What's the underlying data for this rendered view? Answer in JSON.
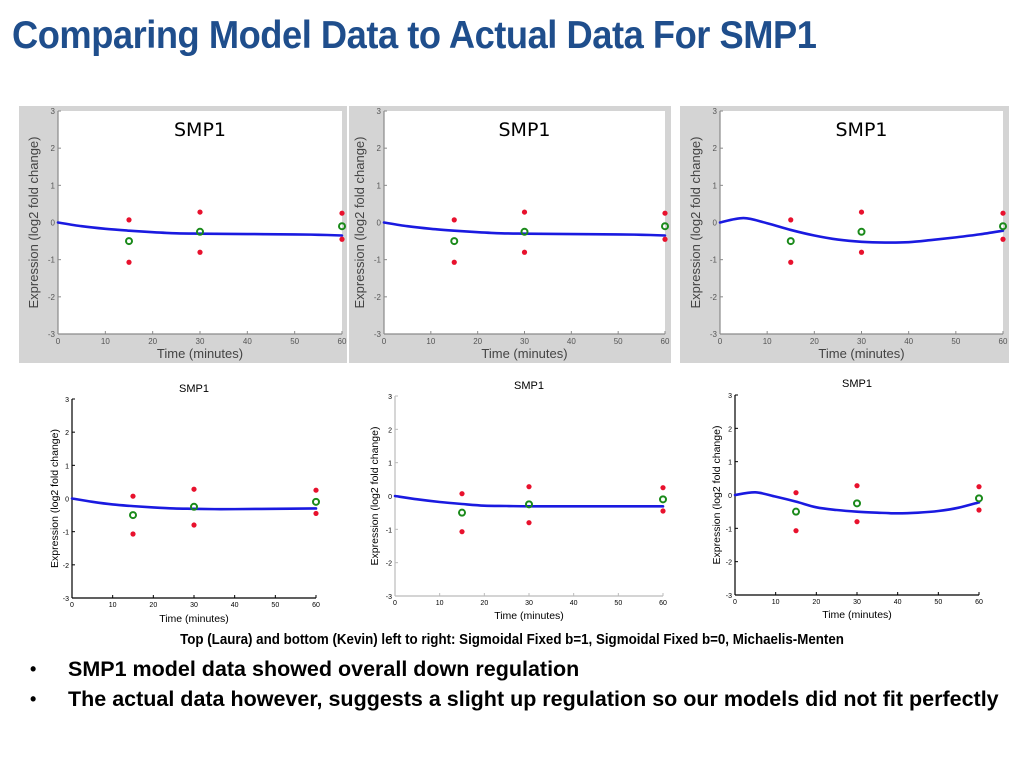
{
  "slide": {
    "title": "Comparing Model Data to Actual Data For SMP1",
    "caption": "Top (Laura) and bottom (Kevin) left to right: Sigmoidal Fixed b=1, Sigmoidal Fixed b=0, Michaelis-Menten",
    "bullets": [
      "SMP1 model data showed overall down regulation",
      "The actual data however, suggests a slight up regulation so our models did not fit perfectly"
    ],
    "bullet_glyph": "•"
  },
  "colors": {
    "title": "#1f4e8c",
    "model_line": "#1a1ae0",
    "replicate": "#e8112d",
    "mean": "#1a8a1a",
    "panel_bg": "#d4d4d4"
  },
  "chart_data": [
    {
      "id": "top-sigmoidal-b1",
      "type": "line",
      "style": "screenshot",
      "title": "SMP1",
      "xlabel": "Time (minutes)",
      "ylabel": "Expression (log2 fold change)",
      "xlim": [
        0,
        60
      ],
      "ylim": [
        -3,
        3
      ],
      "xticks": [
        0,
        10,
        20,
        30,
        40,
        50,
        60
      ],
      "yticks": [
        -3,
        -2,
        -1,
        0,
        1,
        2,
        3
      ],
      "model": {
        "x": [
          0,
          5,
          10,
          15,
          20,
          25,
          30,
          40,
          50,
          55,
          60
        ],
        "y": [
          0,
          -0.1,
          -0.17,
          -0.22,
          -0.26,
          -0.29,
          -0.3,
          -0.31,
          -0.32,
          -0.33,
          -0.35
        ]
      },
      "replicates": {
        "x": [
          15,
          15,
          30,
          30,
          60,
          60
        ],
        "y": [
          0.07,
          -1.07,
          0.28,
          -0.8,
          0.25,
          -0.45
        ]
      },
      "means": {
        "x": [
          15,
          30,
          60
        ],
        "y": [
          -0.5,
          -0.25,
          -0.1
        ]
      }
    },
    {
      "id": "top-sigmoidal-b0",
      "type": "line",
      "style": "screenshot",
      "title": "SMP1",
      "xlabel": "Time (minutes)",
      "ylabel": "Expression (log2 fold change)",
      "xlim": [
        0,
        60
      ],
      "ylim": [
        -3,
        3
      ],
      "xticks": [
        0,
        10,
        20,
        30,
        40,
        50,
        60
      ],
      "yticks": [
        -3,
        -2,
        -1,
        0,
        1,
        2,
        3
      ],
      "model": {
        "x": [
          0,
          5,
          10,
          15,
          20,
          25,
          30,
          40,
          50,
          55,
          60
        ],
        "y": [
          0,
          -0.1,
          -0.17,
          -0.22,
          -0.26,
          -0.29,
          -0.3,
          -0.31,
          -0.32,
          -0.33,
          -0.35
        ]
      },
      "replicates": {
        "x": [
          15,
          15,
          30,
          30,
          60,
          60
        ],
        "y": [
          0.07,
          -1.07,
          0.28,
          -0.8,
          0.25,
          -0.45
        ]
      },
      "means": {
        "x": [
          15,
          30,
          60
        ],
        "y": [
          -0.5,
          -0.25,
          -0.1
        ]
      }
    },
    {
      "id": "top-michaelis-menten",
      "type": "line",
      "style": "screenshot",
      "title": "SMP1",
      "xlabel": "Time (minutes)",
      "ylabel": "Expression (log2 fold change)",
      "xlim": [
        0,
        60
      ],
      "ylim": [
        -3,
        3
      ],
      "xticks": [
        0,
        10,
        20,
        30,
        40,
        50,
        60
      ],
      "yticks": [
        -3,
        -2,
        -1,
        0,
        1,
        2,
        3
      ],
      "model": {
        "x": [
          0,
          5,
          10,
          15,
          20,
          25,
          30,
          35,
          40,
          45,
          50,
          55,
          60
        ],
        "y": [
          0,
          0.12,
          -0.02,
          -0.2,
          -0.35,
          -0.46,
          -0.52,
          -0.54,
          -0.53,
          -0.47,
          -0.4,
          -0.32,
          -0.22
        ]
      },
      "replicates": {
        "x": [
          15,
          15,
          30,
          30,
          60,
          60
        ],
        "y": [
          0.07,
          -1.07,
          0.28,
          -0.8,
          0.25,
          -0.45
        ]
      },
      "means": {
        "x": [
          15,
          30,
          60
        ],
        "y": [
          -0.5,
          -0.25,
          -0.1
        ]
      }
    },
    {
      "id": "bottom-sigmoidal-b1",
      "type": "line",
      "style": "matlab-box",
      "title": "SMP1",
      "xlabel": "Time (minutes)",
      "ylabel": "Expression (log2 fold change)",
      "xlim": [
        0,
        60
      ],
      "ylim": [
        -3,
        3
      ],
      "xticks": [
        0,
        10,
        20,
        30,
        40,
        50,
        60
      ],
      "yticks": [
        -3,
        -2,
        -1,
        0,
        1,
        2,
        3
      ],
      "model": {
        "x": [
          0,
          5,
          10,
          15,
          20,
          25,
          30,
          35,
          40,
          50,
          60
        ],
        "y": [
          0,
          -0.1,
          -0.18,
          -0.23,
          -0.27,
          -0.3,
          -0.31,
          -0.32,
          -0.32,
          -0.31,
          -0.3
        ]
      },
      "replicates": {
        "x": [
          15,
          15,
          30,
          30,
          60,
          60
        ],
        "y": [
          0.07,
          -1.07,
          0.28,
          -0.8,
          0.25,
          -0.45
        ]
      },
      "means": {
        "x": [
          15,
          30,
          60
        ],
        "y": [
          -0.5,
          -0.25,
          -0.1
        ]
      }
    },
    {
      "id": "bottom-sigmoidal-b0",
      "type": "line",
      "style": "light-axes",
      "title": "SMP1",
      "xlabel": "Time (minutes)",
      "ylabel": "Expression (log2 fold change)",
      "xlim": [
        0,
        60
      ],
      "ylim": [
        -3,
        3
      ],
      "xticks": [
        0,
        10,
        20,
        30,
        40,
        50,
        60
      ],
      "yticks": [
        -3,
        -2,
        -1,
        0,
        1,
        2,
        3
      ],
      "model": {
        "x": [
          0,
          5,
          10,
          15,
          20,
          25,
          30,
          40,
          50,
          60
        ],
        "y": [
          0,
          -0.1,
          -0.18,
          -0.24,
          -0.29,
          -0.3,
          -0.31,
          -0.31,
          -0.31,
          -0.31
        ]
      },
      "replicates": {
        "x": [
          15,
          15,
          30,
          30,
          60,
          60
        ],
        "y": [
          0.07,
          -1.07,
          0.28,
          -0.8,
          0.25,
          -0.45
        ]
      },
      "means": {
        "x": [
          15,
          30,
          60
        ],
        "y": [
          -0.5,
          -0.25,
          -0.1
        ]
      }
    },
    {
      "id": "bottom-michaelis-menten",
      "type": "line",
      "style": "matlab-box",
      "title": "SMP1",
      "xlabel": "Time (minutes)",
      "ylabel": "Expression (log2 fold change)",
      "xlim": [
        0,
        60
      ],
      "ylim": [
        -3,
        3
      ],
      "xticks": [
        0,
        10,
        20,
        30,
        40,
        50,
        60
      ],
      "yticks": [
        -3,
        -2,
        -1,
        0,
        1,
        2,
        3
      ],
      "model": {
        "x": [
          0,
          5,
          10,
          15,
          20,
          25,
          30,
          35,
          40,
          45,
          50,
          55,
          60
        ],
        "y": [
          0,
          0.08,
          -0.05,
          -0.2,
          -0.37,
          -0.45,
          -0.5,
          -0.53,
          -0.55,
          -0.53,
          -0.48,
          -0.38,
          -0.22
        ]
      },
      "replicates": {
        "x": [
          15,
          15,
          30,
          30,
          60,
          60
        ],
        "y": [
          0.07,
          -1.07,
          0.28,
          -0.8,
          0.25,
          -0.45
        ]
      },
      "means": {
        "x": [
          15,
          30,
          60
        ],
        "y": [
          -0.5,
          -0.25,
          -0.1
        ]
      }
    }
  ]
}
